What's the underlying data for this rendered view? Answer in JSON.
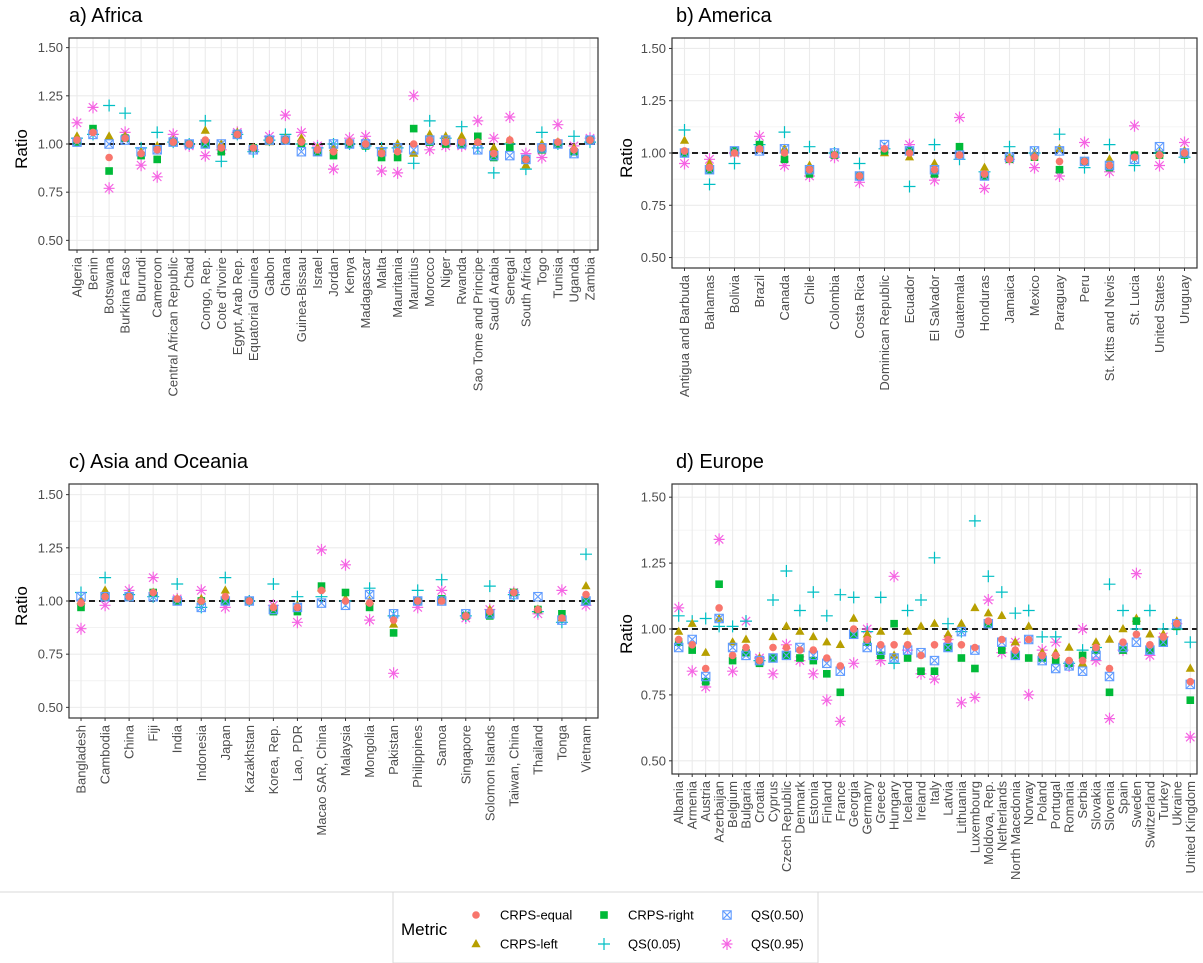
{
  "y_axis": {
    "label": "Ratio",
    "ticks": [
      "0.50",
      "0.75",
      "1.00",
      "1.25",
      "1.50"
    ],
    "ylim": [
      0.45,
      1.55
    ],
    "reference_line": 1.0
  },
  "legend": {
    "title": "Metric",
    "items": [
      {
        "key": "crps_equal",
        "label": "CRPS-equal"
      },
      {
        "key": "crps_left",
        "label": "CRPS-left"
      },
      {
        "key": "crps_right",
        "label": "CRPS-right"
      },
      {
        "key": "qs005",
        "label": "QS(0.05)"
      },
      {
        "key": "qs050",
        "label": "QS(0.50)"
      },
      {
        "key": "qs095",
        "label": "QS(0.95)"
      }
    ]
  },
  "colors": {
    "crps_equal": "#F8766D",
    "crps_left": "#B79F00",
    "crps_right": "#00BA38",
    "qs005": "#00BFC4",
    "qs050": "#619CFF",
    "qs095": "#F564E3",
    "panel_border": "#333333",
    "grid": "#ebebeb"
  },
  "chart_data": [
    {
      "type": "scatter",
      "title": "a) Africa",
      "ylabel": "Ratio",
      "ylim": [
        0.45,
        1.55
      ],
      "categories": [
        "Algeria",
        "Benin",
        "Botswana",
        "Burkina Faso",
        "Burundi",
        "Cameroon",
        "Central African Republic",
        "Chad",
        "Congo, Rep.",
        "Cote d'Ivoire",
        "Egypt, Arab Rep.",
        "Equatorial Guinea",
        "Gabon",
        "Ghana",
        "Guinea-Bissau",
        "Israel",
        "Jordan",
        "Kenya",
        "Madagascar",
        "Malta",
        "Mauritania",
        "Mauritius",
        "Morocco",
        "Niger",
        "Rwanda",
        "Sao Tome and Principe",
        "Saudi Arabia",
        "Senegal",
        "South Africa",
        "Togo",
        "Tunisia",
        "Uganda",
        "Zambia"
      ],
      "series": [
        {
          "key": "crps_equal",
          "name": "CRPS-equal",
          "values": [
            1.02,
            1.06,
            0.93,
            1.03,
            0.95,
            0.97,
            1.01,
            1.0,
            1.02,
            0.98,
            1.05,
            0.98,
            1.02,
            1.02,
            1.01,
            0.97,
            0.96,
            1.01,
            1.0,
            0.95,
            0.96,
            1.0,
            1.02,
            1.01,
            1.01,
            1.01,
            0.95,
            1.02,
            0.92,
            0.98,
            1.01,
            0.97,
            1.02
          ]
        },
        {
          "key": "crps_left",
          "name": "CRPS-left",
          "values": [
            1.04,
            1.07,
            1.04,
            1.04,
            0.96,
            0.99,
            1.02,
            1.0,
            1.07,
            1.0,
            1.06,
            0.98,
            1.01,
            1.03,
            1.03,
            0.98,
            0.98,
            1.01,
            1.01,
            0.97,
            1.0,
            0.95,
            1.05,
            1.04,
            1.04,
            1.01,
            0.98,
            1.02,
            0.89,
            1.0,
            1.01,
            0.98,
            1.02
          ]
        },
        {
          "key": "crps_right",
          "name": "CRPS-right",
          "values": [
            1.01,
            1.08,
            0.86,
            1.03,
            0.94,
            0.92,
            1.01,
            1.0,
            1.0,
            0.96,
            1.05,
            0.98,
            1.02,
            1.02,
            1.0,
            0.96,
            0.94,
            1.0,
            0.99,
            0.93,
            0.93,
            1.08,
            1.01,
            1.0,
            1.0,
            1.04,
            0.93,
            0.98,
            0.92,
            0.97,
            1.0,
            0.96,
            1.02
          ]
        },
        {
          "key": "qs005",
          "name": "QS(0.05)",
          "values": [
            1.03,
            1.05,
            1.2,
            1.16,
            0.98,
            1.06,
            1.01,
            1.0,
            1.12,
            0.91,
            1.05,
            0.96,
            1.02,
            1.05,
            1.0,
            0.98,
            1.0,
            1.0,
            0.99,
            0.98,
            0.98,
            0.9,
            1.12,
            1.03,
            1.09,
            0.98,
            0.85,
            1.0,
            0.87,
            1.06,
            1.0,
            1.04,
            1.01
          ]
        },
        {
          "key": "qs050",
          "name": "QS(0.50)",
          "values": [
            1.01,
            1.05,
            1.0,
            1.02,
            0.96,
            0.97,
            1.01,
            1.0,
            1.0,
            1.0,
            1.05,
            0.97,
            1.02,
            1.02,
            0.96,
            0.96,
            1.0,
            1.0,
            1.0,
            0.96,
            0.98,
            0.97,
            1.02,
            1.02,
            1.0,
            0.97,
            0.94,
            0.94,
            0.92,
            0.98,
            1.0,
            0.95,
            1.02
          ]
        },
        {
          "key": "qs095",
          "name": "QS(0.95)",
          "values": [
            1.11,
            1.19,
            0.77,
            1.06,
            0.89,
            0.83,
            1.05,
            0.99,
            0.94,
            0.97,
            1.06,
            0.97,
            1.04,
            1.15,
            1.06,
            0.99,
            0.87,
            1.03,
            1.04,
            0.86,
            0.85,
            1.25,
            0.97,
            0.99,
            0.99,
            1.12,
            1.03,
            1.14,
            0.95,
            0.93,
            1.1,
            0.99,
            1.03
          ]
        }
      ]
    },
    {
      "type": "scatter",
      "title": "b) America",
      "ylabel": "Ratio",
      "ylim": [
        0.45,
        1.55
      ],
      "categories": [
        "Antigua and Barbuda",
        "Bahamas",
        "Bolivia",
        "Brazil",
        "Canada",
        "Chile",
        "Colombia",
        "Costa Rica",
        "Dominican Republic",
        "Ecuador",
        "El Salvador",
        "Guatemala",
        "Honduras",
        "Jamaica",
        "Mexico",
        "Paraguay",
        "Peru",
        "St. Kitts and Nevis",
        "St. Lucia",
        "United States",
        "Uruguay"
      ],
      "series": [
        {
          "key": "crps_equal",
          "name": "CRPS-equal",
          "values": [
            1.01,
            0.93,
            1.0,
            1.02,
            1.0,
            0.92,
            0.99,
            0.89,
            1.02,
            1.0,
            0.92,
            0.99,
            0.9,
            0.97,
            0.98,
            0.96,
            0.96,
            0.94,
            0.98,
            0.99,
            1.0
          ]
        },
        {
          "key": "crps_left",
          "name": "CRPS-left",
          "values": [
            1.06,
            0.95,
            1.0,
            1.02,
            1.02,
            0.94,
            0.99,
            0.89,
            1.0,
            0.98,
            0.95,
            0.99,
            0.93,
            0.98,
            1.0,
            1.02,
            0.96,
            0.97,
            0.99,
            1.0,
            1.01
          ]
        },
        {
          "key": "crps_right",
          "name": "CRPS-right",
          "values": [
            1.0,
            0.92,
            1.01,
            1.04,
            0.97,
            0.9,
            0.99,
            0.89,
            1.01,
            1.01,
            0.9,
            1.03,
            0.89,
            0.97,
            0.98,
            0.92,
            0.96,
            0.93,
            0.99,
            0.99,
            0.99
          ]
        },
        {
          "key": "qs005",
          "name": "QS(0.05)",
          "values": [
            1.11,
            0.85,
            0.95,
            1.04,
            1.1,
            1.03,
            1.0,
            0.95,
            1.02,
            0.84,
            1.04,
            0.97,
            0.91,
            1.03,
            1.0,
            1.09,
            0.93,
            1.04,
            0.94,
            1.0,
            0.98
          ]
        },
        {
          "key": "qs050",
          "name": "QS(0.50)",
          "values": [
            1.0,
            0.92,
            1.01,
            1.01,
            1.02,
            0.92,
            1.0,
            0.89,
            1.04,
            1.01,
            0.92,
            0.99,
            0.89,
            0.98,
            1.01,
            1.01,
            0.96,
            0.94,
            0.97,
            1.03,
            1.0
          ]
        },
        {
          "key": "qs095",
          "name": "QS(0.95)",
          "values": [
            0.95,
            0.97,
            1.0,
            1.08,
            0.94,
            0.89,
            0.98,
            0.86,
            1.02,
            1.04,
            0.87,
            1.17,
            0.83,
            0.97,
            0.93,
            0.89,
            1.05,
            0.91,
            1.13,
            0.94,
            1.05
          ]
        }
      ]
    },
    {
      "type": "scatter",
      "title": "c) Asia and Oceania",
      "ylabel": "Ratio",
      "ylim": [
        0.45,
        1.55
      ],
      "categories": [
        "Bangladesh",
        "Cambodia",
        "China",
        "Fiji",
        "India",
        "Indonesia",
        "Japan",
        "Kazakhstan",
        "Korea, Rep.",
        "Lao, PDR",
        "Macao SAR, China",
        "Malaysia",
        "Mongolia",
        "Pakistan",
        "Philippines",
        "Samoa",
        "Singapore",
        "Solomon Islands",
        "Taiwan, China",
        "Thailand",
        "Tonga",
        "Vietnam"
      ],
      "series": [
        {
          "key": "crps_equal",
          "name": "CRPS-equal",
          "values": [
            0.99,
            1.02,
            1.02,
            1.04,
            1.01,
            1.0,
            1.02,
            1.0,
            0.97,
            0.97,
            1.05,
            1.0,
            0.99,
            0.91,
            1.0,
            1.0,
            0.93,
            0.95,
            1.04,
            0.96,
            0.92,
            1.03
          ]
        },
        {
          "key": "crps_left",
          "name": "CRPS-left",
          "values": [
            1.0,
            1.05,
            1.03,
            1.04,
            1.01,
            1.01,
            1.05,
            1.0,
            0.97,
            0.98,
            1.06,
            1.01,
            1.0,
            0.89,
            1.0,
            1.0,
            0.93,
            0.96,
            1.04,
            0.96,
            0.92,
            1.07
          ]
        },
        {
          "key": "crps_right",
          "name": "CRPS-right",
          "values": [
            0.97,
            1.02,
            1.02,
            1.04,
            1.0,
            1.0,
            1.0,
            1.0,
            0.95,
            0.95,
            1.07,
            1.04,
            0.97,
            0.85,
            1.0,
            1.01,
            0.93,
            0.93,
            1.04,
            0.96,
            0.94,
            1.0
          ]
        },
        {
          "key": "qs005",
          "name": "QS(0.05)",
          "values": [
            1.04,
            1.11,
            1.03,
            1.02,
            1.08,
            0.97,
            1.11,
            1.0,
            1.08,
            1.02,
            1.02,
            1.0,
            1.06,
            0.93,
            1.05,
            1.1,
            0.93,
            1.07,
            1.03,
            0.95,
            0.9,
            1.22
          ]
        },
        {
          "key": "qs050",
          "name": "QS(0.50)",
          "values": [
            1.02,
            1.02,
            1.02,
            1.02,
            1.0,
            0.97,
            1.0,
            1.0,
            0.96,
            0.97,
            0.99,
            0.98,
            1.03,
            0.94,
            1.0,
            1.0,
            0.94,
            0.94,
            1.03,
            1.02,
            0.91,
            1.0
          ]
        },
        {
          "key": "qs095",
          "name": "QS(0.95)",
          "values": [
            0.87,
            0.98,
            1.05,
            1.11,
            1.01,
            1.05,
            0.97,
            1.0,
            0.98,
            0.9,
            1.24,
            1.17,
            0.91,
            0.66,
            0.97,
            1.05,
            0.92,
            0.96,
            1.04,
            0.94,
            1.05,
            0.98
          ]
        }
      ]
    },
    {
      "type": "scatter",
      "title": "d) Europe",
      "ylabel": "Ratio",
      "ylim": [
        0.45,
        1.55
      ],
      "categories": [
        "Albania",
        "Armenia",
        "Austria",
        "Azerbaijan",
        "Belgium",
        "Bulgaria",
        "Croatia",
        "Cyprus",
        "Czech Republic",
        "Denmark",
        "Estonia",
        "Finland",
        "France",
        "Georgia",
        "Germany",
        "Greece",
        "Hungary",
        "Iceland",
        "Ireland",
        "Italy",
        "Latvia",
        "Lithuania",
        "Luxembourg",
        "Moldova, Rep.",
        "Netherlands",
        "North Macedonia",
        "Norway",
        "Poland",
        "Portugal",
        "Romania",
        "Serbia",
        "Slovakia",
        "Slovenia",
        "Spain",
        "Sweden",
        "Switzerland",
        "Turkey",
        "Ukraine",
        "United Kingdom"
      ],
      "series": [
        {
          "key": "crps_equal",
          "name": "CRPS-equal",
          "values": [
            0.96,
            0.94,
            0.85,
            1.08,
            0.9,
            0.93,
            0.88,
            0.93,
            0.93,
            0.92,
            0.92,
            0.89,
            0.86,
            1.0,
            0.96,
            0.94,
            0.94,
            0.94,
            0.9,
            0.94,
            0.96,
            0.94,
            0.93,
            1.03,
            0.96,
            0.92,
            0.96,
            0.9,
            0.9,
            0.88,
            0.88,
            0.93,
            0.85,
            0.95,
            0.98,
            0.94,
            0.97,
            1.02,
            0.8
          ]
        },
        {
          "key": "crps_left",
          "name": "CRPS-left",
          "values": [
            0.99,
            1.02,
            0.91,
            1.04,
            0.95,
            0.96,
            0.89,
            0.97,
            1.01,
            0.99,
            0.97,
            0.95,
            0.94,
            1.04,
            0.98,
            0.99,
            0.9,
            0.99,
            1.01,
            1.02,
            0.98,
            1.02,
            1.08,
            1.06,
            1.05,
            0.95,
            1.01,
            0.91,
            0.91,
            0.93,
            0.87,
            0.95,
            0.96,
            1.0,
            1.04,
            0.98,
            0.98,
            1.03,
            0.85
          ]
        },
        {
          "key": "crps_right",
          "name": "CRPS-right",
          "values": [
            0.95,
            0.92,
            0.8,
            1.17,
            0.88,
            0.91,
            0.87,
            0.89,
            0.9,
            0.89,
            0.88,
            0.83,
            0.76,
            0.98,
            0.95,
            0.9,
            1.02,
            0.89,
            0.84,
            0.84,
            0.93,
            0.89,
            0.85,
            1.02,
            0.92,
            0.9,
            0.89,
            0.89,
            0.88,
            0.87,
            0.9,
            0.92,
            0.76,
            0.92,
            1.03,
            0.92,
            0.95,
            1.01,
            0.73
          ]
        },
        {
          "key": "qs005",
          "name": "QS(0.05)",
          "values": [
            1.05,
            1.03,
            1.04,
            1.01,
            1.01,
            1.03,
            0.88,
            1.11,
            1.22,
            1.07,
            1.14,
            1.05,
            1.13,
            1.12,
            0.99,
            1.12,
            0.87,
            1.07,
            1.11,
            1.27,
            1.02,
            0.99,
            1.41,
            1.2,
            1.14,
            1.06,
            1.07,
            0.97,
            0.97,
            0.87,
            0.92,
            0.93,
            1.17,
            1.07,
            1.0,
            1.07,
            1.0,
            1.0,
            0.95
          ]
        },
        {
          "key": "qs050",
          "name": "QS(0.50)",
          "values": [
            0.93,
            0.96,
            0.82,
            1.04,
            0.93,
            0.9,
            0.88,
            0.89,
            0.9,
            0.93,
            0.9,
            0.87,
            0.84,
            0.98,
            0.93,
            0.92,
            0.89,
            0.92,
            0.91,
            0.88,
            0.93,
            0.99,
            0.92,
            1.02,
            0.95,
            0.9,
            0.96,
            0.88,
            0.85,
            0.86,
            0.84,
            0.9,
            0.82,
            0.93,
            0.95,
            0.92,
            0.95,
            1.02,
            0.79
          ]
        },
        {
          "key": "qs095",
          "name": "QS(0.95)",
          "values": [
            1.08,
            0.84,
            0.78,
            1.34,
            0.84,
            1.03,
            0.89,
            0.83,
            0.94,
            0.88,
            0.83,
            0.73,
            0.65,
            0.87,
            1.0,
            0.88,
            1.2,
            0.92,
            0.83,
            0.81,
            0.96,
            0.72,
            0.74,
            1.11,
            0.91,
            0.95,
            0.75,
            0.92,
            0.95,
            0.86,
            1.0,
            0.88,
            0.66,
            0.92,
            1.21,
            0.9,
            0.97,
            1.02,
            0.59
          ]
        }
      ]
    }
  ]
}
